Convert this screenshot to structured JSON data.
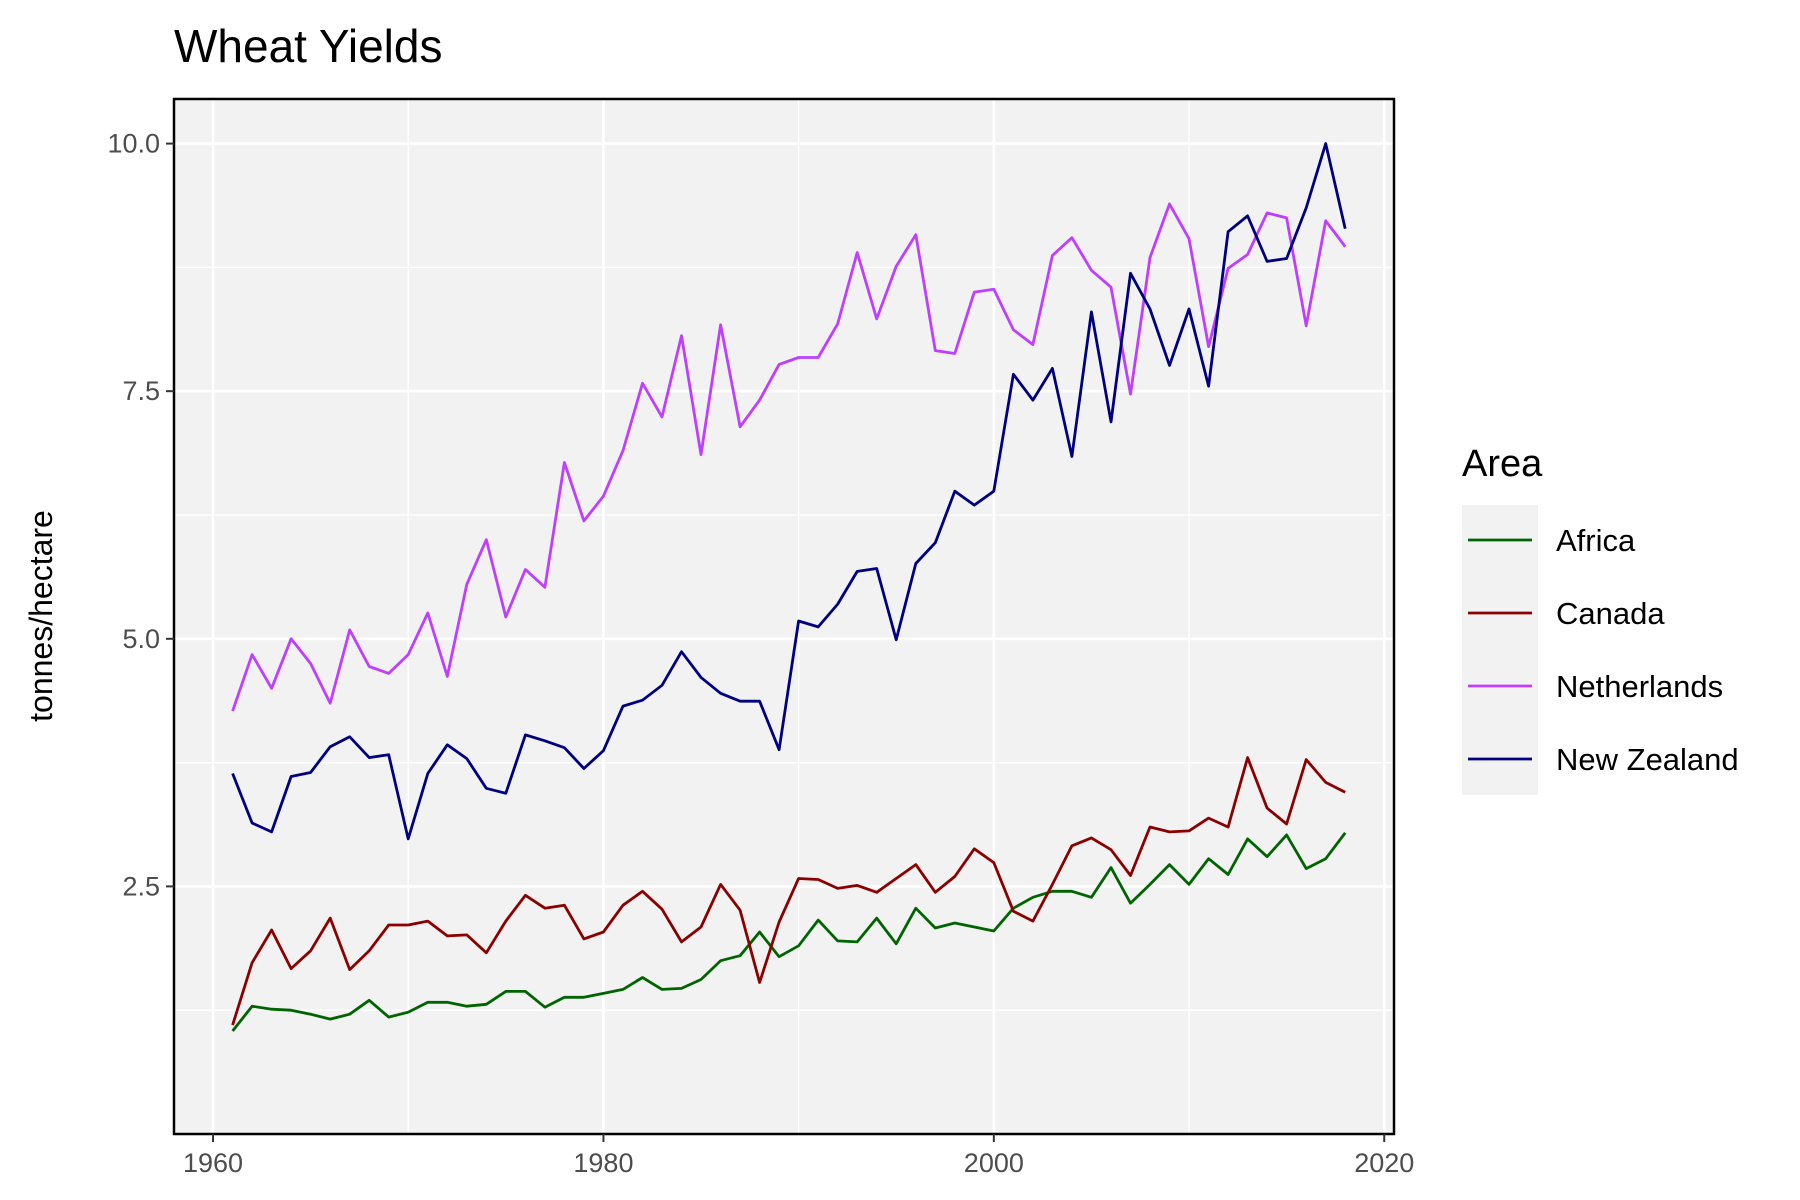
{
  "chart_data": {
    "type": "line",
    "title": "Wheat Yields",
    "xlabel": "",
    "ylabel": "tonnes/hectare",
    "xlim": [
      1958,
      2020.5
    ],
    "ylim": [
      0,
      10.45
    ],
    "x_ticks": [
      1960,
      1980,
      2000,
      2020
    ],
    "y_ticks": [
      2.5,
      5.0,
      7.5,
      10.0
    ],
    "y_tick_labels": [
      "2.5",
      "5.0",
      "7.5",
      "10.0"
    ],
    "grid": true,
    "legend": {
      "title": "Area",
      "position": "right"
    },
    "x": [
      1961,
      1962,
      1963,
      1964,
      1965,
      1966,
      1967,
      1968,
      1969,
      1970,
      1971,
      1972,
      1973,
      1974,
      1975,
      1976,
      1977,
      1978,
      1979,
      1980,
      1981,
      1982,
      1983,
      1984,
      1985,
      1986,
      1987,
      1988,
      1989,
      1990,
      1991,
      1992,
      1993,
      1994,
      1995,
      1996,
      1997,
      1998,
      1999,
      2000,
      2001,
      2002,
      2003,
      2004,
      2005,
      2006,
      2007,
      2008,
      2009,
      2010,
      2011,
      2012,
      2013,
      2014,
      2015,
      2016,
      2017,
      2018
    ],
    "series": [
      {
        "name": "Africa",
        "color": "#006400",
        "values": [
          1.04,
          1.29,
          1.26,
          1.25,
          1.21,
          1.16,
          1.21,
          1.35,
          1.18,
          1.23,
          1.33,
          1.33,
          1.29,
          1.31,
          1.44,
          1.44,
          1.28,
          1.38,
          1.38,
          1.42,
          1.46,
          1.58,
          1.46,
          1.47,
          1.56,
          1.75,
          1.8,
          2.04,
          1.79,
          1.9,
          2.16,
          1.95,
          1.94,
          2.18,
          1.92,
          2.28,
          2.08,
          2.13,
          2.09,
          2.05,
          2.28,
          2.39,
          2.45,
          2.45,
          2.39,
          2.69,
          2.33,
          2.52,
          2.72,
          2.52,
          2.78,
          2.62,
          2.98,
          2.8,
          3.02,
          2.68,
          2.78,
          3.04
        ]
      },
      {
        "name": "Canada",
        "color": "#8b0000",
        "values": [
          1.1,
          1.73,
          2.06,
          1.67,
          1.85,
          2.18,
          1.66,
          1.85,
          2.11,
          2.11,
          2.15,
          2.0,
          2.01,
          1.83,
          2.15,
          2.41,
          2.28,
          2.31,
          1.97,
          2.04,
          2.31,
          2.45,
          2.27,
          1.94,
          2.09,
          2.52,
          2.26,
          1.53,
          2.14,
          2.58,
          2.57,
          2.48,
          2.51,
          2.44,
          2.58,
          2.72,
          2.44,
          2.6,
          2.88,
          2.74,
          2.25,
          2.15,
          2.52,
          2.91,
          2.99,
          2.87,
          2.61,
          3.1,
          3.05,
          3.06,
          3.19,
          3.1,
          3.8,
          3.29,
          3.13,
          3.78,
          3.55,
          3.45
        ]
      },
      {
        "name": "Netherlands",
        "color": "#bf3eff",
        "values": [
          4.27,
          4.84,
          4.5,
          5.0,
          4.75,
          4.35,
          5.09,
          4.72,
          4.65,
          4.84,
          5.26,
          4.62,
          5.55,
          6.0,
          5.22,
          5.7,
          5.52,
          6.78,
          6.19,
          6.44,
          6.9,
          7.58,
          7.24,
          8.06,
          6.86,
          8.17,
          7.14,
          7.41,
          7.77,
          7.84,
          7.84,
          8.18,
          8.9,
          8.23,
          8.76,
          9.08,
          7.91,
          7.88,
          8.5,
          8.53,
          8.12,
          7.97,
          8.87,
          9.05,
          8.72,
          8.55,
          7.47,
          8.85,
          9.39,
          9.04,
          7.95,
          8.74,
          8.88,
          9.3,
          9.25,
          8.16,
          9.22,
          8.96
        ]
      },
      {
        "name": "New Zealand",
        "color": "#000080",
        "values": [
          3.64,
          3.14,
          3.05,
          3.61,
          3.65,
          3.91,
          4.01,
          3.8,
          3.83,
          2.98,
          3.64,
          3.93,
          3.79,
          3.49,
          3.44,
          4.03,
          3.97,
          3.9,
          3.69,
          3.87,
          4.32,
          4.38,
          4.53,
          4.87,
          4.61,
          4.45,
          4.37,
          4.37,
          3.88,
          5.18,
          5.12,
          5.35,
          5.68,
          5.71,
          4.99,
          5.76,
          5.97,
          6.49,
          6.35,
          6.49,
          7.67,
          7.41,
          7.73,
          6.84,
          8.3,
          7.19,
          8.69,
          8.33,
          7.76,
          8.33,
          7.55,
          9.11,
          9.27,
          8.81,
          8.84,
          9.35,
          10.0,
          9.14
        ]
      }
    ]
  }
}
